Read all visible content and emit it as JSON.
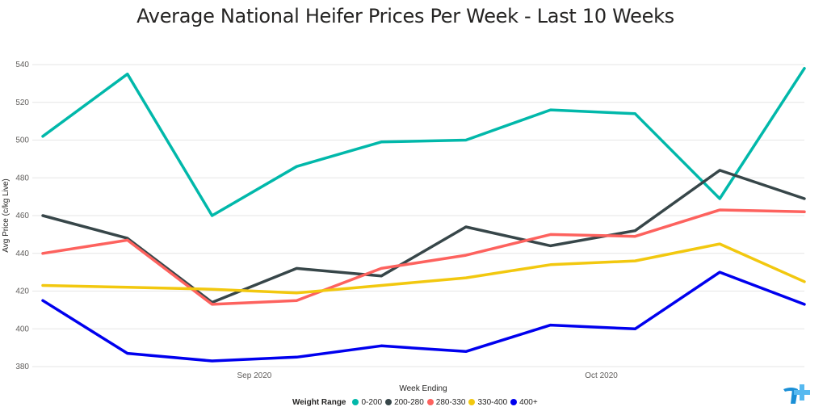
{
  "chart_data": {
    "type": "line",
    "title": "Average National Heifer Prices Per Week - Last 10 Weeks",
    "xlabel": "Week Ending",
    "ylabel": "Avg Price (c/kg Live)",
    "ylim": [
      380,
      540
    ],
    "yticks": [
      380,
      400,
      420,
      440,
      460,
      480,
      500,
      520,
      540
    ],
    "xticks": [
      {
        "label": "Sep 2020",
        "at": 2.5
      },
      {
        "label": "Oct 2020",
        "at": 6.6
      }
    ],
    "x": [
      0,
      1,
      2,
      3,
      4,
      5,
      6,
      7,
      8,
      9
    ],
    "grid": true,
    "legend_title": "Weight Range",
    "legend_position": "bottom",
    "series": [
      {
        "name": "0-200",
        "color": "#01B8AA",
        "values": [
          502,
          535,
          460,
          486,
          499,
          500,
          516,
          514,
          469,
          538
        ]
      },
      {
        "name": "200-280",
        "color": "#374649",
        "values": [
          460,
          448,
          414,
          432,
          428,
          454,
          444,
          452,
          484,
          469
        ]
      },
      {
        "name": "280-330",
        "color": "#FD625E",
        "values": [
          440,
          447,
          413,
          415,
          432,
          439,
          450,
          449,
          463,
          462
        ]
      },
      {
        "name": "330-400",
        "color": "#F2C80F",
        "values": [
          423,
          422,
          421,
          419,
          423,
          427,
          434,
          436,
          445,
          425
        ]
      },
      {
        "name": "400+",
        "color": "#0000EE",
        "values": [
          415,
          387,
          383,
          385,
          391,
          388,
          402,
          400,
          430,
          413
        ]
      }
    ]
  }
}
